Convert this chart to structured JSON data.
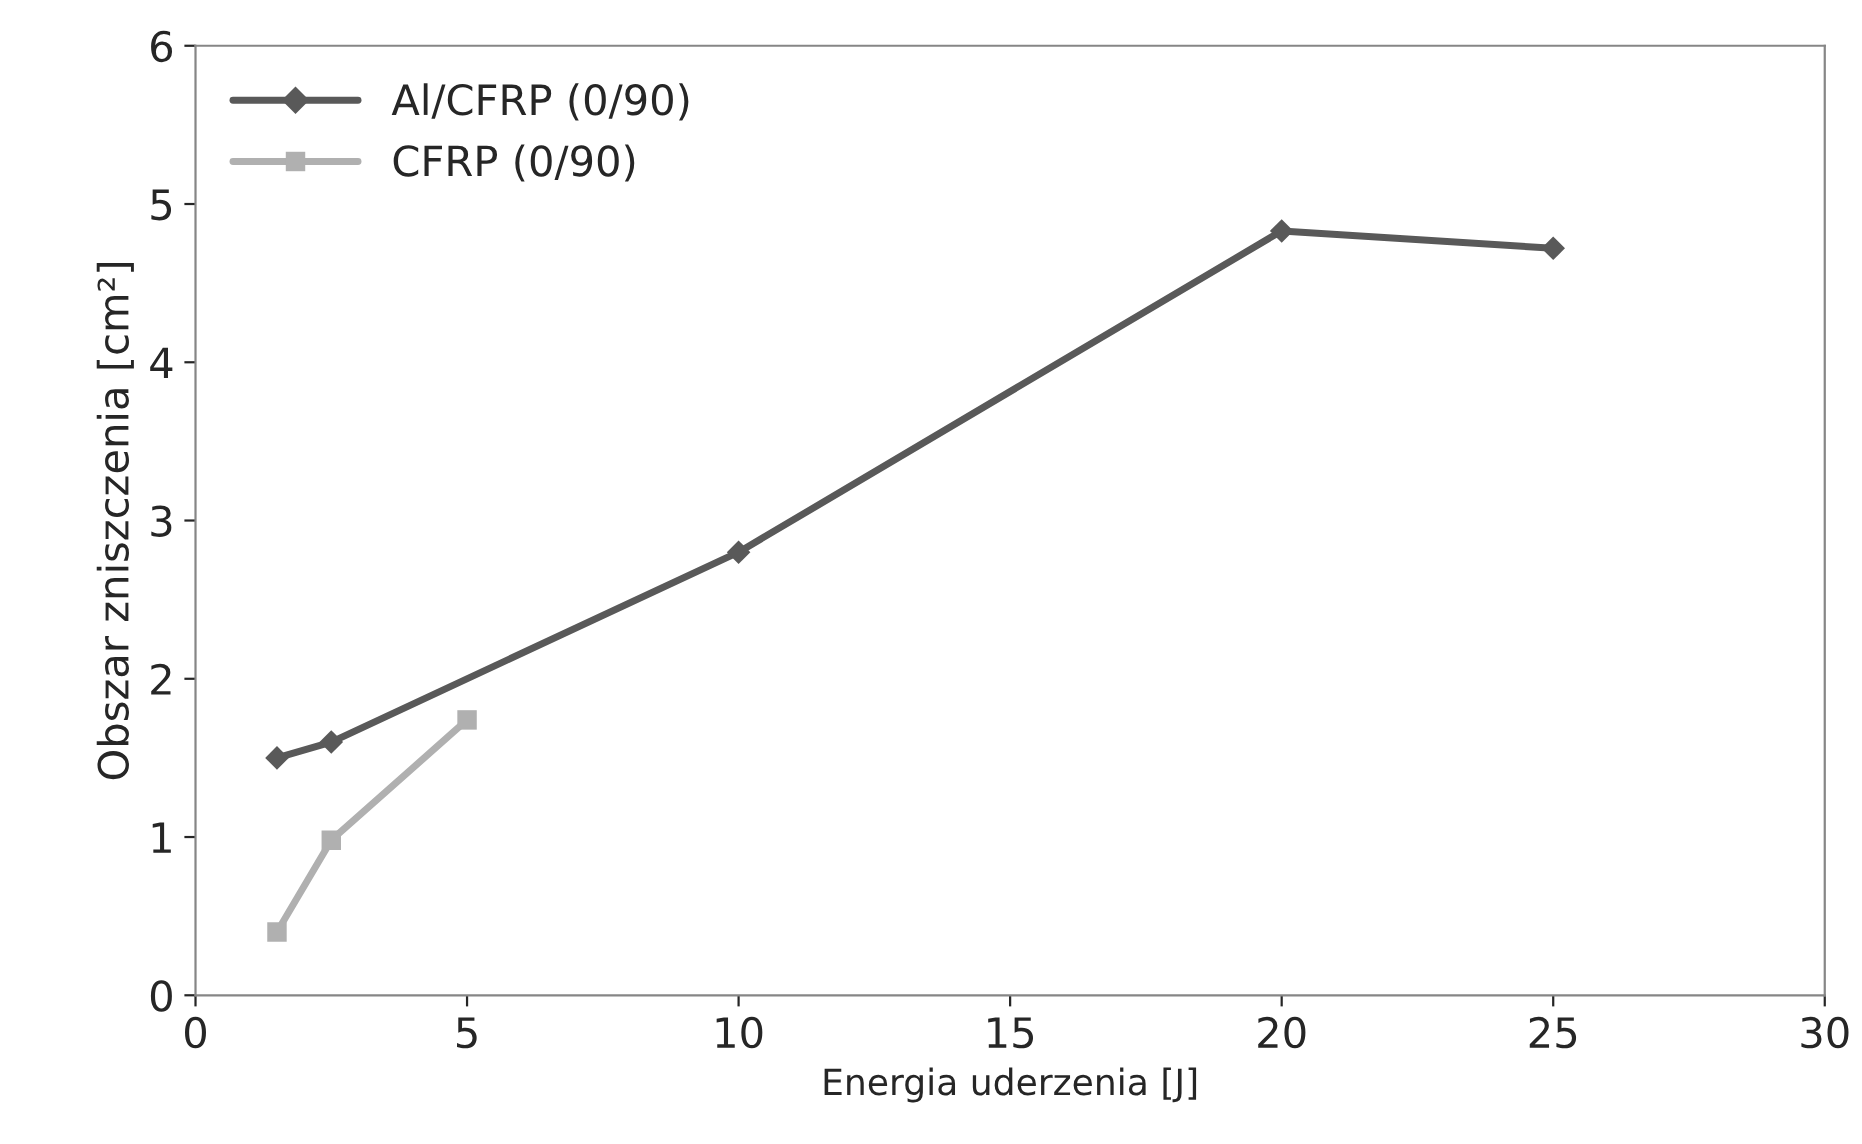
{
  "chart_data": {
    "type": "line",
    "xlabel": "Energia uderzenia [J]",
    "ylabel": "Obszar zniszczenia [cm²]",
    "xlim": [
      0,
      30
    ],
    "ylim": [
      0,
      6
    ],
    "xticks": [
      0,
      5,
      10,
      15,
      20,
      25,
      30
    ],
    "yticks": [
      0,
      1,
      2,
      3,
      4,
      5,
      6
    ],
    "grid": false,
    "legend": "top left",
    "line_style": "solid",
    "series": [
      {
        "name": "Al/CFRP (0/90)",
        "color": "#595959",
        "marker": "diamond",
        "x": [
          1.5,
          2.5,
          10,
          20,
          25
        ],
        "values": [
          1.5,
          1.6,
          2.8,
          4.83,
          4.72
        ]
      },
      {
        "name": "CFRP (0/90)",
        "color": "#b0b0b0",
        "marker": "square",
        "x": [
          1.5,
          2.5,
          5
        ],
        "values": [
          0.4,
          0.98,
          1.74
        ]
      }
    ]
  }
}
